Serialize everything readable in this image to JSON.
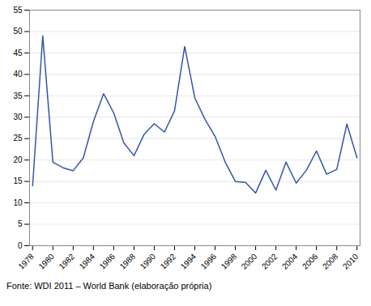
{
  "chart_data": {
    "type": "line",
    "x": [
      1978,
      1979,
      1980,
      1981,
      1982,
      1983,
      1984,
      1985,
      1986,
      1987,
      1988,
      1989,
      1990,
      1991,
      1992,
      1993,
      1994,
      1995,
      1996,
      1997,
      1998,
      1999,
      2000,
      2001,
      2002,
      2003,
      2004,
      2005,
      2006,
      2007,
      2008,
      2009,
      2010
    ],
    "values": [
      14.0,
      49.0,
      19.5,
      18.2,
      17.5,
      20.5,
      29.0,
      35.5,
      31.0,
      24.0,
      21.0,
      26.0,
      28.5,
      26.5,
      31.5,
      46.5,
      34.5,
      29.5,
      25.5,
      19.5,
      15.0,
      14.8,
      12.3,
      17.6,
      13.0,
      19.5,
      14.6,
      17.6,
      22.1,
      16.7,
      17.8,
      28.4,
      20.5
    ],
    "color": "#3355aa",
    "xlim": [
      1977.7,
      2010.3
    ],
    "xticks": [
      1978,
      1980,
      1982,
      1984,
      1986,
      1988,
      1990,
      1992,
      1994,
      1996,
      1998,
      2000,
      2002,
      2004,
      2006,
      2008,
      2010
    ],
    "ylim": [
      0,
      55
    ],
    "yticks": [
      0,
      5,
      10,
      15,
      20,
      25,
      30,
      35,
      40,
      45,
      50,
      55
    ],
    "grid": true,
    "caption": "Fonte: WDI 2011 – World Bank (elaboração própria)"
  }
}
